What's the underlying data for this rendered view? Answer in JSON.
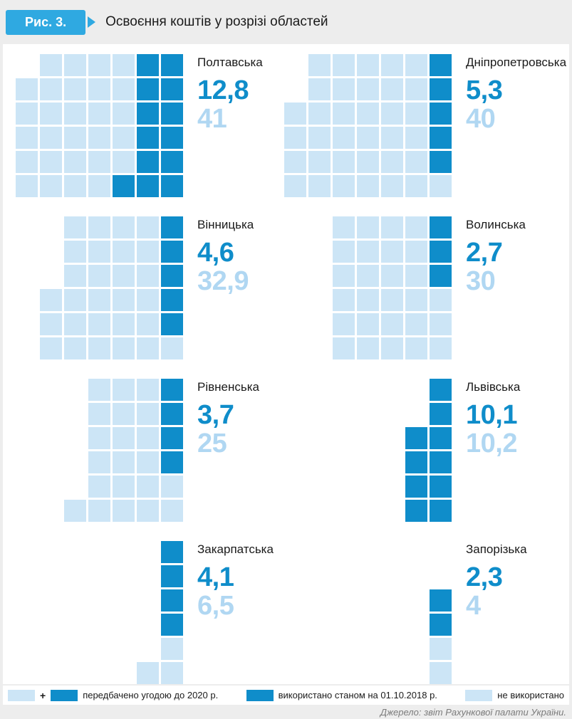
{
  "figure_label": "Рис. 3.",
  "title": "Освоєння коштів у розрізі областей",
  "colors": {
    "used_dark_blue": "#0f8dca",
    "unused_light_blue": "#cce5f6",
    "total_number_light_blue": "#b0d7f2",
    "badge_blue": "#2fa9e1"
  },
  "legend": {
    "plus": "+",
    "planned_label": "передбачено угодою до 2020 р.",
    "used_label": "використано станом на 01.10.2018 р.",
    "unused_label": "не використано"
  },
  "source": "Джерело: звіт Рахункової палати України.",
  "chart_data": {
    "type": "waffle",
    "legend_position": "bottom",
    "cell_states": {
      "0": "empty",
      "1": "unused",
      "2": "used"
    },
    "regions": [
      {
        "id": "poltavska",
        "name": "Полтавська",
        "used": 12.8,
        "total": 41,
        "used_display": "12,8",
        "total_display": "41",
        "grid": [
          [
            0,
            1,
            1,
            1,
            1,
            2,
            2
          ],
          [
            1,
            1,
            1,
            1,
            1,
            2,
            2
          ],
          [
            1,
            1,
            1,
            1,
            1,
            2,
            2
          ],
          [
            1,
            1,
            1,
            1,
            1,
            2,
            2
          ],
          [
            1,
            1,
            1,
            1,
            1,
            2,
            2
          ],
          [
            1,
            1,
            1,
            1,
            2,
            2,
            2
          ]
        ]
      },
      {
        "id": "dnipropetrovska",
        "name": "Дніпропетровська",
        "used": 5.3,
        "total": 40,
        "used_display": "5,3",
        "total_display": "40",
        "grid": [
          [
            0,
            1,
            1,
            1,
            1,
            1,
            2
          ],
          [
            0,
            1,
            1,
            1,
            1,
            1,
            2
          ],
          [
            1,
            1,
            1,
            1,
            1,
            1,
            2
          ],
          [
            1,
            1,
            1,
            1,
            1,
            1,
            2
          ],
          [
            1,
            1,
            1,
            1,
            1,
            1,
            2
          ],
          [
            1,
            1,
            1,
            1,
            1,
            1,
            1
          ]
        ]
      },
      {
        "id": "vinnytska",
        "name": "Вінницька",
        "used": 4.6,
        "total": 32.9,
        "used_display": "4,6",
        "total_display": "32,9",
        "grid": [
          [
            0,
            1,
            1,
            1,
            1,
            2
          ],
          [
            0,
            1,
            1,
            1,
            1,
            2
          ],
          [
            0,
            1,
            1,
            1,
            1,
            2
          ],
          [
            1,
            1,
            1,
            1,
            1,
            2
          ],
          [
            1,
            1,
            1,
            1,
            1,
            2
          ],
          [
            1,
            1,
            1,
            1,
            1,
            1
          ]
        ]
      },
      {
        "id": "volynska",
        "name": "Волинська",
        "used": 2.7,
        "total": 30,
        "used_display": "2,7",
        "total_display": "30",
        "grid": [
          [
            1,
            1,
            1,
            1,
            2
          ],
          [
            1,
            1,
            1,
            1,
            2
          ],
          [
            1,
            1,
            1,
            1,
            2
          ],
          [
            1,
            1,
            1,
            1,
            1
          ],
          [
            1,
            1,
            1,
            1,
            1
          ],
          [
            1,
            1,
            1,
            1,
            1
          ]
        ]
      },
      {
        "id": "rivnenska",
        "name": "Рівненська",
        "used": 3.7,
        "total": 25,
        "used_display": "3,7",
        "total_display": "25",
        "grid": [
          [
            0,
            1,
            1,
            1,
            2
          ],
          [
            0,
            1,
            1,
            1,
            2
          ],
          [
            0,
            1,
            1,
            1,
            2
          ],
          [
            0,
            1,
            1,
            1,
            2
          ],
          [
            0,
            1,
            1,
            1,
            1
          ],
          [
            1,
            1,
            1,
            1,
            1
          ]
        ]
      },
      {
        "id": "lvivska",
        "name": "Львівська",
        "used": 10.1,
        "total": 10.2,
        "used_display": "10,1",
        "total_display": "10,2",
        "grid": [
          [
            0,
            2
          ],
          [
            0,
            2
          ],
          [
            2,
            2
          ],
          [
            2,
            2
          ],
          [
            2,
            2
          ],
          [
            2,
            2
          ]
        ]
      },
      {
        "id": "zakarpatska",
        "name": "Закарпатська",
        "used": 4.1,
        "total": 6.5,
        "used_display": "4,1",
        "total_display": "6,5",
        "grid": [
          [
            0,
            2
          ],
          [
            0,
            2
          ],
          [
            0,
            2
          ],
          [
            0,
            2
          ],
          [
            0,
            1
          ],
          [
            1,
            1
          ]
        ]
      },
      {
        "id": "zaporizka",
        "name": "Запорізька",
        "used": 2.3,
        "total": 4,
        "used_display": "2,3",
        "total_display": "4",
        "grid": [
          [
            0
          ],
          [
            0
          ],
          [
            2
          ],
          [
            2
          ],
          [
            1
          ],
          [
            1
          ]
        ]
      }
    ]
  }
}
